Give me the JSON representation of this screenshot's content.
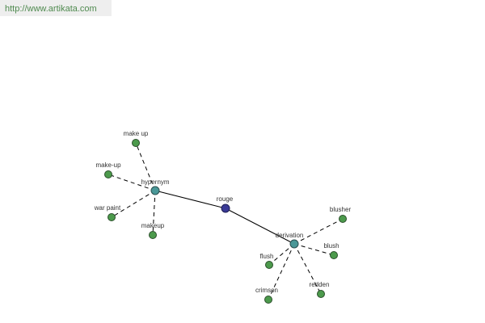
{
  "header": {
    "url": "http://www.artikata.com"
  },
  "nodes": [
    {
      "label": "rouge"
    },
    {
      "label": "hypernym"
    },
    {
      "label": "derivation"
    },
    {
      "label": "make up"
    },
    {
      "label": "make-up"
    },
    {
      "label": "war paint"
    },
    {
      "label": "makeup"
    },
    {
      "label": "blusher"
    },
    {
      "label": "blush"
    },
    {
      "label": "flush"
    },
    {
      "label": "crimson"
    },
    {
      "label": "redden"
    }
  ]
}
